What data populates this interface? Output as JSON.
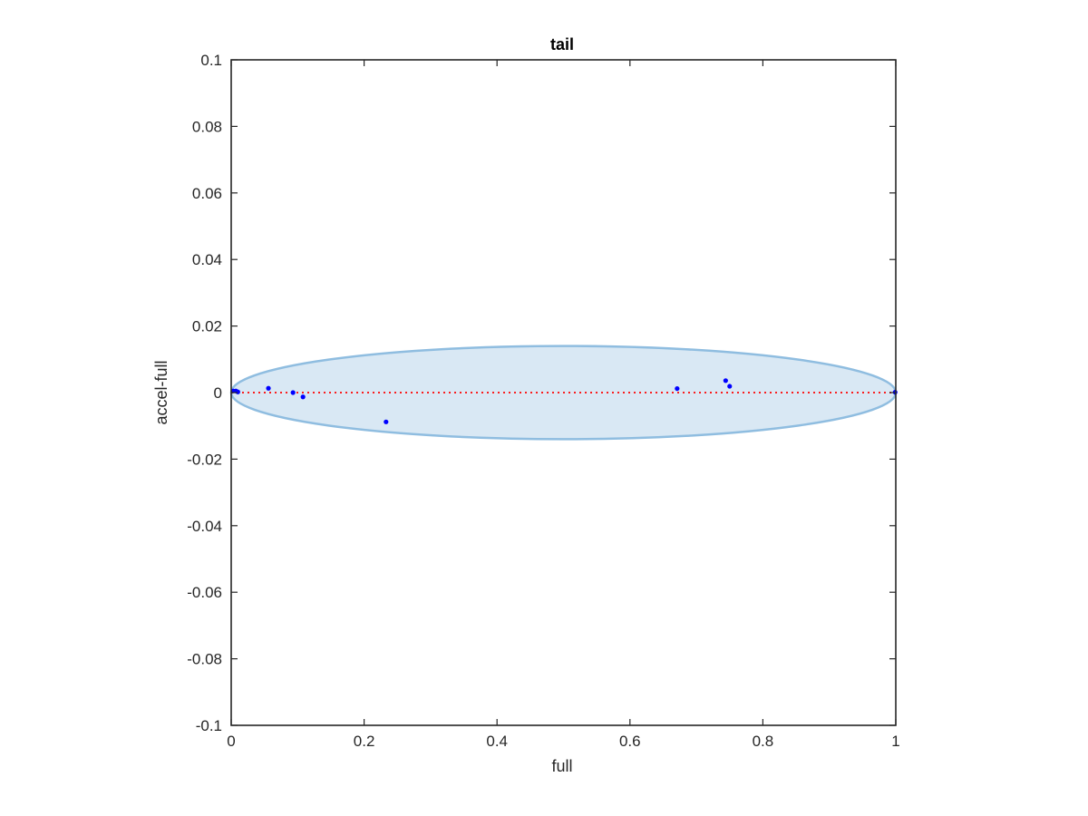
{
  "chart_data": {
    "type": "scatter",
    "title": "tail",
    "xlabel": "full",
    "ylabel": "accel-full",
    "xlim": [
      0,
      1
    ],
    "ylim": [
      -0.1,
      0.1
    ],
    "xticks": [
      "0",
      "0.2",
      "0.4",
      "0.6",
      "0.8",
      "1"
    ],
    "xtick_values": [
      0,
      0.2,
      0.4,
      0.6,
      0.8,
      1
    ],
    "yticks": [
      "0.1",
      "0.08",
      "0.06",
      "0.04",
      "0.02",
      "0",
      "-0.02",
      "-0.04",
      "-0.06",
      "-0.08",
      "-0.1"
    ],
    "ytick_values": [
      0.1,
      0.08,
      0.06,
      0.04,
      0.02,
      0,
      -0.02,
      -0.04,
      -0.06,
      -0.08,
      -0.1
    ],
    "grid": false,
    "points": {
      "color": "#0000ff",
      "x": [
        0.003,
        0.007,
        0.01,
        0.056,
        0.093,
        0.108,
        0.233,
        0.671,
        0.744,
        0.75,
        0.999
      ],
      "y": [
        0.0005,
        0.0005,
        0.0002,
        0.0013,
        0.0,
        -0.0013,
        -0.0088,
        0.0012,
        0.0036,
        0.0019,
        0.0001
      ]
    },
    "reference_line": {
      "y": 0,
      "x": [
        0,
        1
      ],
      "color": "#ff0000",
      "style": "dotted"
    },
    "ellipse": {
      "center": [
        0.5,
        0
      ],
      "x_semi_axis": 0.5,
      "y_semi_axis": 0.014,
      "fill": "#d9e8f4",
      "stroke": "#8fbde0"
    }
  }
}
